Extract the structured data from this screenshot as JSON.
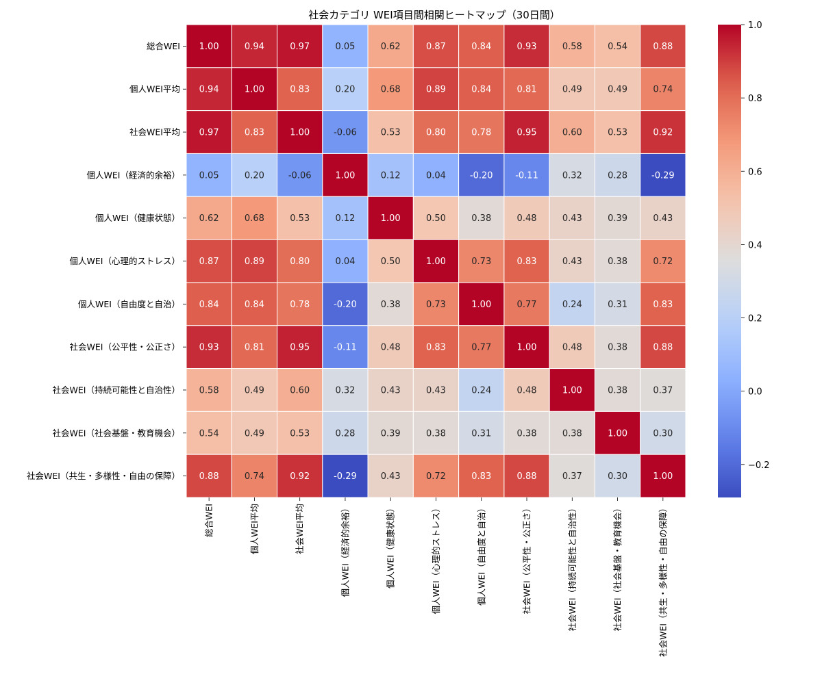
{
  "chart_data": {
    "type": "heatmap",
    "title": "社会カテゴリ WEI項目間相関ヒートマップ（30日間）",
    "colormap": "coolwarm",
    "vmin": -0.29,
    "vmax": 1.0,
    "row_labels": [
      "総合WEI",
      "個人WEI平均",
      "社会WEI平均",
      "個人WEI（経済的余裕）",
      "個人WEI（健康状態）",
      "個人WEI（心理的ストレス）",
      "個人WEI（自由度と自治）",
      "社会WEI（公平性・公正さ）",
      "社会WEI（持続可能性と自治性）",
      "社会WEI（社会基盤・教育機会）",
      "社会WEI（共生・多様性・自由の保障）"
    ],
    "col_labels": [
      "総合WEI",
      "個人WEI平均",
      "社会WEI平均",
      "個人WEI（経済的余裕）",
      "個人WEI（健康状態）",
      "個人WEI（心理的ストレス）",
      "個人WEI（自由度と自治）",
      "社会WEI（公平性・公正さ）",
      "社会WEI（持続可能性と自治性）",
      "社会WEI（社会基盤・教育機会）",
      "社会WEI（共生・多様性・自由の保障）"
    ],
    "values": [
      [
        1.0,
        0.94,
        0.97,
        0.05,
        0.62,
        0.87,
        0.84,
        0.93,
        0.58,
        0.54,
        0.88
      ],
      [
        0.94,
        1.0,
        0.83,
        0.2,
        0.68,
        0.89,
        0.84,
        0.81,
        0.49,
        0.49,
        0.74
      ],
      [
        0.97,
        0.83,
        1.0,
        -0.06,
        0.53,
        0.8,
        0.78,
        0.95,
        0.6,
        0.53,
        0.92
      ],
      [
        0.05,
        0.2,
        -0.06,
        1.0,
        0.12,
        0.04,
        -0.2,
        -0.11,
        0.32,
        0.28,
        -0.29
      ],
      [
        0.62,
        0.68,
        0.53,
        0.12,
        1.0,
        0.5,
        0.38,
        0.48,
        0.43,
        0.39,
        0.43
      ],
      [
        0.87,
        0.89,
        0.8,
        0.04,
        0.5,
        1.0,
        0.73,
        0.83,
        0.43,
        0.38,
        0.72
      ],
      [
        0.84,
        0.84,
        0.78,
        -0.2,
        0.38,
        0.73,
        1.0,
        0.77,
        0.24,
        0.31,
        0.83
      ],
      [
        0.93,
        0.81,
        0.95,
        -0.11,
        0.48,
        0.83,
        0.77,
        1.0,
        0.48,
        0.38,
        0.88
      ],
      [
        0.58,
        0.49,
        0.6,
        0.32,
        0.43,
        0.43,
        0.24,
        0.48,
        1.0,
        0.38,
        0.37
      ],
      [
        0.54,
        0.49,
        0.53,
        0.28,
        0.39,
        0.38,
        0.31,
        0.38,
        0.38,
        1.0,
        0.3
      ],
      [
        0.88,
        0.74,
        0.92,
        -0.29,
        0.43,
        0.72,
        0.83,
        0.88,
        0.37,
        0.3,
        1.0
      ]
    ],
    "colorbar": {
      "ticks": [
        -0.2,
        0.0,
        0.2,
        0.4,
        0.6,
        0.8,
        1.0
      ],
      "tick_labels": [
        "−0.2",
        "0.0",
        "0.2",
        "0.4",
        "0.6",
        "0.8",
        "1.0"
      ]
    }
  }
}
